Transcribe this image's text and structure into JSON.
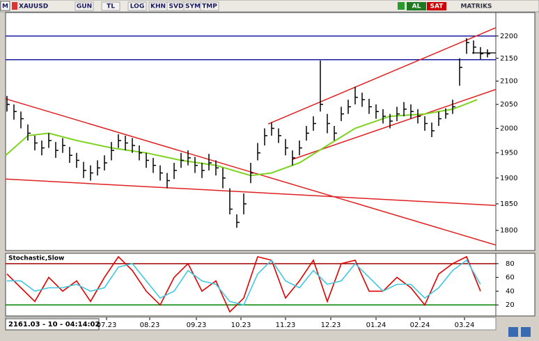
{
  "toolbar": {
    "symbol_button": "M",
    "symbol": "XAUUSD",
    "buttons": [
      "GUN",
      "TL",
      "LOG",
      "KHN",
      "SVD",
      "SYM",
      "TMP"
    ],
    "buy": "AL",
    "sell": "SAT",
    "brand": "MATRIKS"
  },
  "status": "2161.03 - 10 - 04:14:02",
  "chart_data": [
    {
      "type": "ohlc",
      "log_scale": true,
      "bar_color": "#000000",
      "xlim": [
        -0.2,
        70.2
      ],
      "ylim": [
        1763,
        2254
      ],
      "yticks": [
        1800,
        1850,
        1900,
        1950,
        2000,
        2050,
        2100,
        2150,
        2200
      ],
      "high": [
        2068,
        2050,
        2035,
        2008,
        1985,
        1975,
        1990,
        1972,
        1980,
        1962,
        1950,
        1932,
        1925,
        1935,
        1945,
        1972,
        1988,
        1985,
        1980,
        1965,
        1950,
        1940,
        1925,
        1910,
        1930,
        1950,
        1955,
        1942,
        1930,
        1948,
        1935,
        1920,
        1880,
        1830,
        1870,
        1930,
        1970,
        2000,
        2012,
        2000,
        1978,
        1955,
        1975,
        2005,
        2025,
        2145,
        2030,
        2005,
        2045,
        2060,
        2088,
        2075,
        2062,
        2050,
        2040,
        2030,
        2045,
        2055,
        2050,
        2040,
        2025,
        2012,
        2035,
        2042,
        2060,
        2150,
        2195,
        2190,
        2175,
        2170
      ],
      "low": [
        2035,
        2018,
        2000,
        1975,
        1955,
        1945,
        1960,
        1940,
        1950,
        1930,
        1920,
        1900,
        1895,
        1905,
        1915,
        1935,
        1960,
        1955,
        1950,
        1935,
        1920,
        1910,
        1895,
        1880,
        1898,
        1920,
        1925,
        1910,
        1900,
        1915,
        1905,
        1880,
        1830,
        1805,
        1830,
        1890,
        1935,
        1965,
        1985,
        1970,
        1945,
        1925,
        1945,
        1975,
        1995,
        2035,
        1990,
        1975,
        2015,
        2030,
        2050,
        2045,
        2030,
        2020,
        2010,
        2000,
        2015,
        2025,
        2020,
        2010,
        1995,
        1982,
        2005,
        2020,
        2030,
        2090,
        2160,
        2160,
        2148,
        2152
      ],
      "close": [
        2050,
        2035,
        2020,
        1990,
        1970,
        1960,
        1975,
        1955,
        1965,
        1945,
        1935,
        1915,
        1910,
        1920,
        1930,
        1955,
        1975,
        1970,
        1965,
        1950,
        1935,
        1925,
        1910,
        1895,
        1915,
        1935,
        1940,
        1925,
        1915,
        1930,
        1920,
        1900,
        1840,
        1815,
        1850,
        1910,
        1950,
        1985,
        2000,
        1985,
        1960,
        1940,
        1960,
        1990,
        2010,
        2050,
        2010,
        1990,
        2030,
        2045,
        2065,
        2060,
        2045,
        2035,
        2025,
        2015,
        2030,
        2040,
        2035,
        2025,
        2010,
        1995,
        2020,
        2030,
        2045,
        2130,
        2185,
        2175,
        2160,
        2160
      ],
      "ma": {
        "color": "#7ed321",
        "x": [
          -0.2,
          3,
          6,
          10,
          15,
          20,
          25,
          30,
          35,
          38,
          42,
          46,
          50,
          55,
          60,
          64,
          67.5
        ],
        "values": [
          1945,
          1985,
          1990,
          1975,
          1960,
          1950,
          1935,
          1925,
          1905,
          1910,
          1930,
          1965,
          2000,
          2025,
          2030,
          2040,
          2060
        ]
      },
      "trend_lines": [
        {
          "color": "#e02020",
          "x": [
            -0.2,
            70.2
          ],
          "values": [
            2062,
            1773
          ]
        },
        {
          "color": "#e02020",
          "x": [
            -0.2,
            70.2
          ],
          "values": [
            1898,
            1847
          ]
        },
        {
          "color": "#e02020",
          "x": [
            37.5,
            70.2
          ],
          "values": [
            2009,
            2219
          ]
        },
        {
          "color": "#e02020",
          "x": [
            41,
            70.2
          ],
          "values": [
            1937,
            2082
          ]
        },
        {
          "color": "#202020",
          "x": [
            66.8,
            70.2
          ],
          "values": [
            2162,
            2162
          ]
        }
      ],
      "hlines": {
        "color": "#1a1aa0",
        "values": [
          2200,
          2147
        ]
      }
    },
    {
      "type": "line",
      "title": "Stochastic,Slow",
      "xlim": [
        -0.2,
        70.2
      ],
      "ylim": [
        4,
        95
      ],
      "yticks": [
        20,
        40,
        60,
        80
      ],
      "xticks": [
        {
          "value": 14.3,
          "label": "07.23"
        },
        {
          "value": 20.5,
          "label": "08.23"
        },
        {
          "value": 27.2,
          "label": "09.23"
        },
        {
          "value": 33.6,
          "label": "10.23"
        },
        {
          "value": 40,
          "label": "11.23"
        },
        {
          "value": 46.5,
          "label": "12.23"
        },
        {
          "value": 53,
          "label": "01.24"
        },
        {
          "value": 59.3,
          "label": "02.24"
        },
        {
          "value": 65.7,
          "label": "03.24"
        }
      ],
      "levels": [
        {
          "value": 80,
          "color": "#a00000"
        },
        {
          "value": 20,
          "color": "#008000"
        }
      ],
      "x": [
        0,
        2,
        4,
        6,
        8,
        10,
        12,
        14,
        16,
        18,
        20,
        22,
        24,
        26,
        28,
        30,
        32,
        34,
        36,
        38,
        40,
        42,
        44,
        46,
        48,
        50,
        52,
        54,
        56,
        58,
        60,
        62,
        64,
        66,
        68
      ],
      "series": [
        {
          "color": "#e00000",
          "values": [
            65,
            45,
            25,
            60,
            40,
            55,
            25,
            60,
            90,
            70,
            40,
            20,
            60,
            80,
            40,
            55,
            10,
            30,
            90,
            85,
            30,
            55,
            85,
            25,
            80,
            85,
            40,
            40,
            60,
            45,
            20,
            65,
            80,
            90,
            40
          ]
        },
        {
          "color": "#40c8e0",
          "values": [
            55,
            55,
            40,
            45,
            45,
            50,
            40,
            45,
            75,
            80,
            55,
            30,
            40,
            70,
            55,
            50,
            25,
            20,
            65,
            85,
            55,
            45,
            70,
            50,
            55,
            80,
            60,
            40,
            50,
            50,
            30,
            45,
            70,
            85,
            50
          ]
        }
      ]
    }
  ]
}
